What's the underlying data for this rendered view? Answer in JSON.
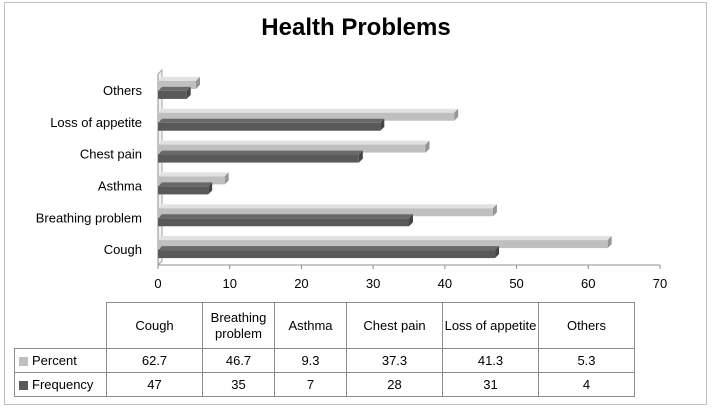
{
  "chart_data": {
    "type": "bar",
    "orientation": "horizontal",
    "title": "Health Problems",
    "categories": [
      "Cough",
      "Breathing problem",
      "Asthma",
      "Chest pain",
      "Loss of appetite",
      "Others"
    ],
    "table_headers": [
      "Cough",
      "Breathing problem",
      "Asthma",
      "Chest pain",
      "Loss of appetite",
      "Others"
    ],
    "series": [
      {
        "name": "Percent",
        "values": [
          62.7,
          46.7,
          9.3,
          37.3,
          41.3,
          5.3
        ],
        "color": "#bfbfbf"
      },
      {
        "name": "Frequency",
        "values": [
          47,
          35,
          7,
          28,
          31,
          4
        ],
        "color": "#595959"
      }
    ],
    "xlim": [
      0,
      70
    ],
    "x_ticks": [
      0,
      10,
      20,
      30,
      40,
      50,
      60,
      70
    ],
    "grid": false,
    "legend": "data table below chart"
  }
}
